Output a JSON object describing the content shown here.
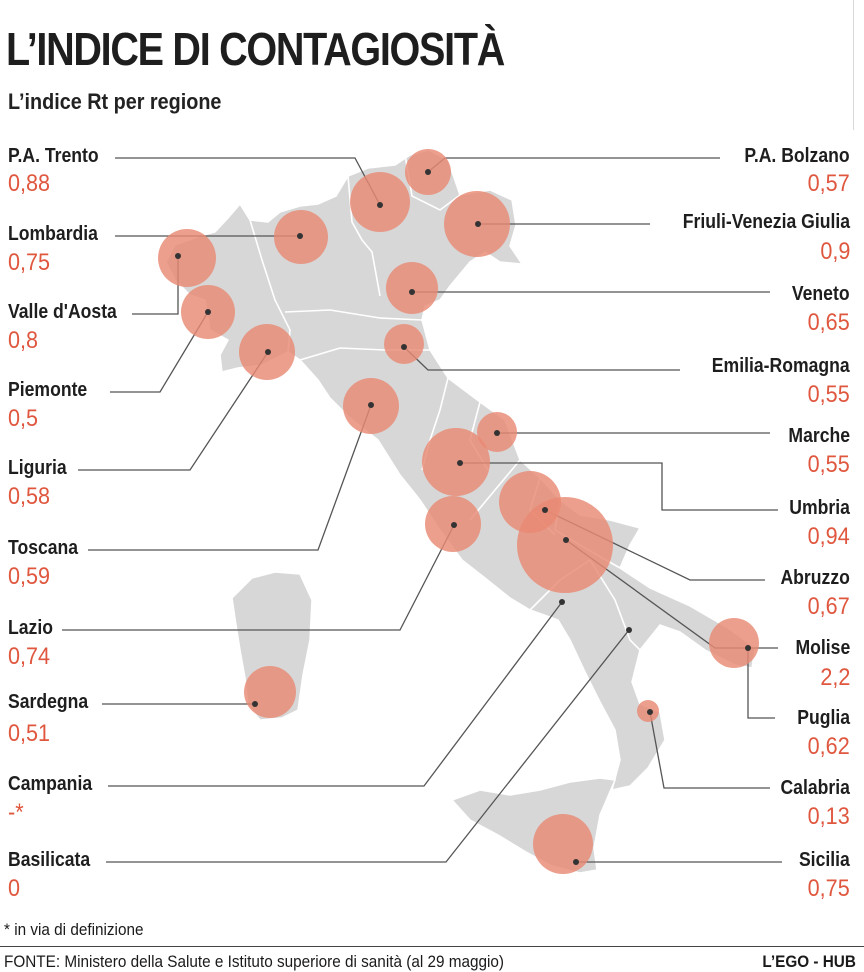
{
  "header": {
    "title": "L’INDICE DI CONTAGIOSITÀ",
    "subtitle": "L’indice Rt per regione"
  },
  "accent_color": "#e0573f",
  "bubble_color": "#e98a74",
  "map_color": "#d7d7d7",
  "regions": {
    "trento": {
      "name": "P.A. Trento",
      "value": "0,88"
    },
    "bolzano": {
      "name": "P.A. Bolzano",
      "value": "0,57"
    },
    "lombardia": {
      "name": "Lombardia",
      "value": "0,75"
    },
    "friuli": {
      "name": "Friuli-Venezia Giulia",
      "value": "0,9"
    },
    "valle": {
      "name": "Valle d'Aosta",
      "value": "0,8"
    },
    "veneto": {
      "name": "Veneto",
      "value": "0,65"
    },
    "piemonte": {
      "name": "Piemonte",
      "value": "0,5"
    },
    "emilia": {
      "name": "Emilia-Romagna",
      "value": "0,55"
    },
    "liguria": {
      "name": "Liguria",
      "value": "0,58"
    },
    "marche": {
      "name": "Marche",
      "value": "0,55"
    },
    "toscana": {
      "name": "Toscana",
      "value": "0,59"
    },
    "umbria": {
      "name": "Umbria",
      "value": "0,94"
    },
    "lazio": {
      "name": "Lazio",
      "value": "0,74"
    },
    "abruzzo": {
      "name": "Abruzzo",
      "value": "0,67"
    },
    "sardegna": {
      "name": "Sardegna",
      "value": "0,51"
    },
    "molise": {
      "name": "Molise",
      "value": "2,2"
    },
    "campania": {
      "name": "Campania",
      "value": "-*"
    },
    "puglia": {
      "name": "Puglia",
      "value": "0,62"
    },
    "calabria": {
      "name": "Calabria",
      "value": "0,13"
    },
    "basilicata": {
      "name": "Basilicata",
      "value": "0"
    },
    "sicilia": {
      "name": "Sicilia",
      "value": "0,75"
    }
  },
  "footnote": "* in via di definizione",
  "source": "FONTE: Ministero della Salute e Istituto superiore di sanità (al 29 maggio)",
  "brand": "L’EGO - HUB"
}
